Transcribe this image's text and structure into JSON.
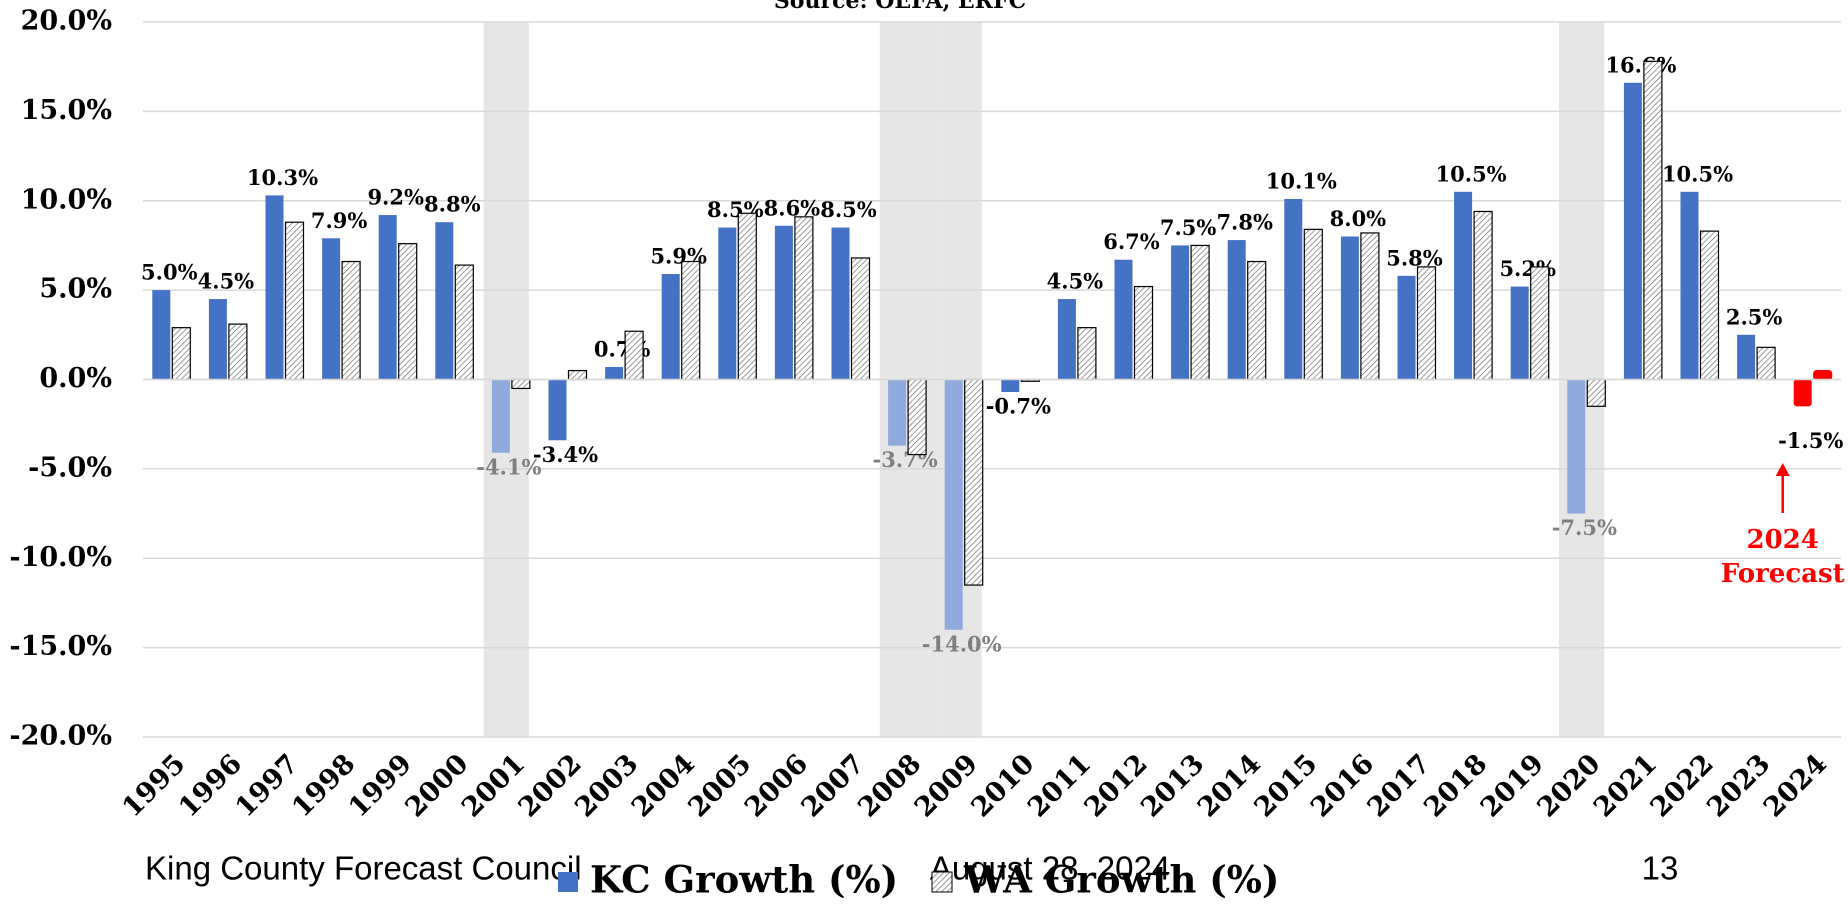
{
  "chart_data": {
    "type": "bar",
    "title": "Source: OEFA, ERFC",
    "categories": [
      "1995",
      "1996",
      "1997",
      "1998",
      "1999",
      "2000",
      "2001",
      "2002",
      "2003",
      "2004",
      "2005",
      "2006",
      "2007",
      "2008",
      "2009",
      "2010",
      "2011",
      "2012",
      "2013",
      "2014",
      "2015",
      "2016",
      "2017",
      "2018",
      "2019",
      "2020",
      "2021",
      "2022",
      "2023",
      "2024"
    ],
    "series": [
      {
        "name": "KC Growth (%)",
        "color": "#4472c4",
        "shaded_color": "#8faadc",
        "values": [
          5.0,
          4.5,
          10.3,
          7.9,
          9.2,
          8.8,
          -4.1,
          -3.4,
          0.7,
          5.9,
          8.5,
          8.6,
          8.5,
          -3.7,
          -14.0,
          -0.7,
          4.5,
          6.7,
          7.5,
          7.8,
          10.1,
          8.0,
          5.8,
          10.5,
          5.2,
          -7.5,
          16.6,
          10.5,
          2.5,
          -1.5
        ],
        "value_labels": [
          "5.0%",
          "4.5%",
          "10.3%",
          "7.9%",
          "9.2%",
          "8.8%",
          "-4.1%",
          "-3.4%",
          "0.7%",
          "5.9%",
          "8.5%",
          "8.6%",
          "8.5%",
          "-3.7%",
          "-14.0%",
          "-0.7%",
          "4.5%",
          "6.7%",
          "7.5%",
          "7.8%",
          "10.1%",
          "8.0%",
          "5.8%",
          "10.5%",
          "5.2%",
          "-7.5%",
          "16.6%",
          "10.5%",
          "2.5%",
          "-1.5%"
        ]
      },
      {
        "name": "WA Growth (%)",
        "color": "#000000",
        "values": [
          2.9,
          3.1,
          8.8,
          6.6,
          7.6,
          6.4,
          -0.5,
          0.5,
          2.7,
          6.6,
          9.3,
          9.1,
          6.8,
          -4.2,
          -11.5,
          -0.1,
          2.9,
          5.2,
          7.5,
          6.6,
          8.4,
          8.2,
          6.3,
          9.4,
          6.3,
          -1.5,
          17.8,
          8.3,
          1.8,
          0.5
        ]
      }
    ],
    "shaded_categories": [
      "2001",
      "2008",
      "2009",
      "2020"
    ],
    "shade_color": "#e7e6e6",
    "annotation": {
      "text": [
        "2024",
        "Forecast"
      ],
      "color": "#ff0000"
    },
    "ylim": [
      -20,
      20
    ],
    "yticks": [
      {
        "value": -20,
        "label": "-20.0%"
      },
      {
        "value": -15,
        "label": "-15.0%"
      },
      {
        "value": -10,
        "label": "-10.0%"
      },
      {
        "value": -5,
        "label": "-5.0%"
      },
      {
        "value": 0,
        "label": "0.0%"
      },
      {
        "value": 5,
        "label": "5.0%"
      },
      {
        "value": 10,
        "label": "10.0%"
      },
      {
        "value": 15,
        "label": "15.0%"
      },
      {
        "value": 20,
        "label": "20.0%"
      }
    ],
    "grid": true
  },
  "footer": {
    "left": "King County Forecast Council",
    "center": "August 28, 2024",
    "right": "13"
  }
}
